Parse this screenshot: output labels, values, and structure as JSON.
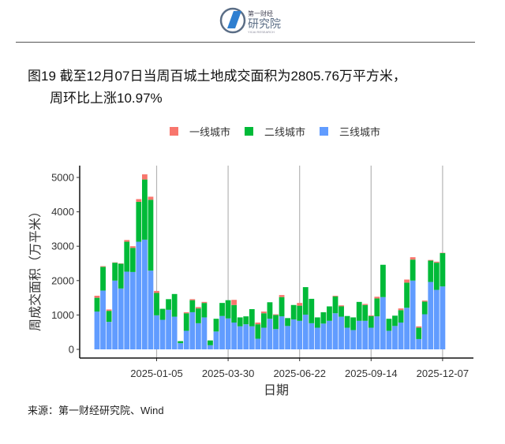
{
  "header": {
    "logo_text": "第一财经研究院",
    "logo_sub": "YICAI RESEARCH"
  },
  "title": {
    "line1": "图19 截至12月07日当周百城土地成交面积为2805.76万平方米，",
    "line2": "周环比上涨10.97%"
  },
  "source": "来源：第一财经研究院、Wind",
  "chart_data": {
    "type": "bar",
    "stacked": true,
    "xlabel": "日期",
    "ylabel": "周成交面积（万平米）",
    "ylim": [
      0,
      5200
    ],
    "yticks": [
      0,
      1000,
      2000,
      3000,
      4000,
      5000
    ],
    "xticks": [
      "2025-01-05",
      "2025-03-30",
      "2025-06-22",
      "2025-09-14",
      "2025-12-07"
    ],
    "grid": "vertical at x ticks",
    "legend": "top",
    "categories": [
      "2024-10-27",
      "2024-11-03",
      "2024-11-10",
      "2024-11-17",
      "2024-11-24",
      "2024-12-01",
      "2024-12-08",
      "2024-12-15",
      "2024-12-22",
      "2024-12-29",
      "2025-01-05",
      "2025-01-12",
      "2025-01-19",
      "2025-01-26",
      "2025-02-02",
      "2025-02-09",
      "2025-02-16",
      "2025-02-23",
      "2025-03-02",
      "2025-03-09",
      "2025-03-16",
      "2025-03-23",
      "2025-03-30",
      "2025-04-06",
      "2025-04-13",
      "2025-04-20",
      "2025-04-27",
      "2025-05-04",
      "2025-05-11",
      "2025-05-18",
      "2025-05-25",
      "2025-06-01",
      "2025-06-08",
      "2025-06-15",
      "2025-06-22",
      "2025-06-29",
      "2025-07-06",
      "2025-07-13",
      "2025-07-20",
      "2025-07-27",
      "2025-08-03",
      "2025-08-10",
      "2025-08-17",
      "2025-08-24",
      "2025-08-31",
      "2025-09-07",
      "2025-09-14",
      "2025-09-21",
      "2025-09-28",
      "2025-10-05",
      "2025-10-12",
      "2025-10-19",
      "2025-10-26",
      "2025-11-02",
      "2025-11-09",
      "2025-11-16",
      "2025-11-23",
      "2025-11-30",
      "2025-12-07"
    ],
    "series": [
      {
        "name": "三线城市",
        "color": "#619CFF",
        "values": [
          1100,
          1710,
          800,
          2000,
          1770,
          2260,
          2250,
          3130,
          3190,
          2290,
          990,
          860,
          1150,
          950,
          180,
          540,
          1080,
          760,
          930,
          120,
          520,
          970,
          900,
          780,
          670,
          730,
          670,
          310,
          630,
          890,
          590,
          960,
          680,
          870,
          830,
          1010,
          760,
          630,
          750,
          830,
          1050,
          950,
          630,
          560,
          830,
          830,
          630,
          960,
          1520,
          540,
          680,
          780,
          1210,
          2000,
          300,
          1020,
          1960,
          1730,
          1830
        ]
      },
      {
        "name": "二线城市",
        "color": "#00BA38",
        "values": [
          400,
          690,
          320,
          520,
          720,
          870,
          700,
          1160,
          1750,
          2060,
          650,
          320,
          310,
          660,
          60,
          510,
          350,
          430,
          420,
          140,
          370,
          380,
          530,
          510,
          260,
          230,
          500,
          420,
          420,
          480,
          410,
          560,
          230,
          420,
          440,
          800,
          710,
          300,
          330,
          420,
          490,
          300,
          340,
          370,
          550,
          460,
          340,
          520,
          940,
          350,
          300,
          360,
          730,
          610,
          330,
          370,
          620,
          790,
          970
        ]
      },
      {
        "name": "一线城市",
        "color": "#F8766D",
        "values": [
          60,
          20,
          40,
          10,
          10,
          50,
          50,
          80,
          150,
          90,
          60,
          0,
          0,
          0,
          0,
          30,
          30,
          40,
          30,
          0,
          0,
          0,
          0,
          150,
          0,
          0,
          0,
          50,
          50,
          0,
          20,
          60,
          0,
          0,
          80,
          0,
          0,
          0,
          0,
          0,
          20,
          30,
          0,
          0,
          0,
          30,
          20,
          50,
          0,
          0,
          0,
          50,
          90,
          70,
          40,
          30,
          20,
          30,
          10
        ]
      }
    ]
  }
}
